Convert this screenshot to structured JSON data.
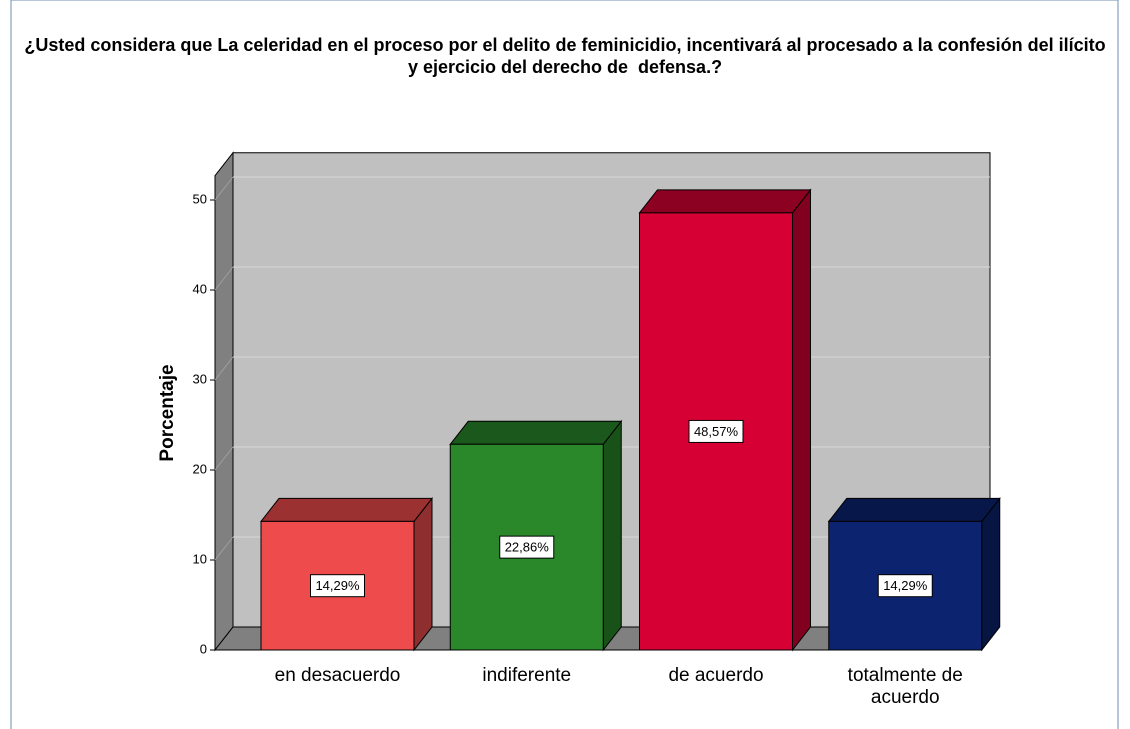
{
  "chart_data": {
    "type": "bar3d",
    "title": "¿Usted considera que La celeridad en el proceso por el delito de feminicidio, incentivará al procesado a la confesión del ilícito y ejercicio del derecho de  defensa.?",
    "y_label": "Porcentaje",
    "categories": [
      "en desacuerdo",
      "indiferente",
      "de acuerdo",
      "totalmente de acuerdo"
    ],
    "values": [
      14.29,
      22.86,
      48.57,
      14.29
    ],
    "value_labels": [
      "14,29%",
      "22,86%",
      "48,57%",
      "14,29%"
    ],
    "colors": [
      "#ee4c4c",
      "#2a882a",
      "#d70034",
      "#0c2370"
    ],
    "ylim": [
      0,
      52.7
    ],
    "yticks": [
      0,
      10,
      20,
      30,
      40,
      50
    ],
    "grid": true
  }
}
